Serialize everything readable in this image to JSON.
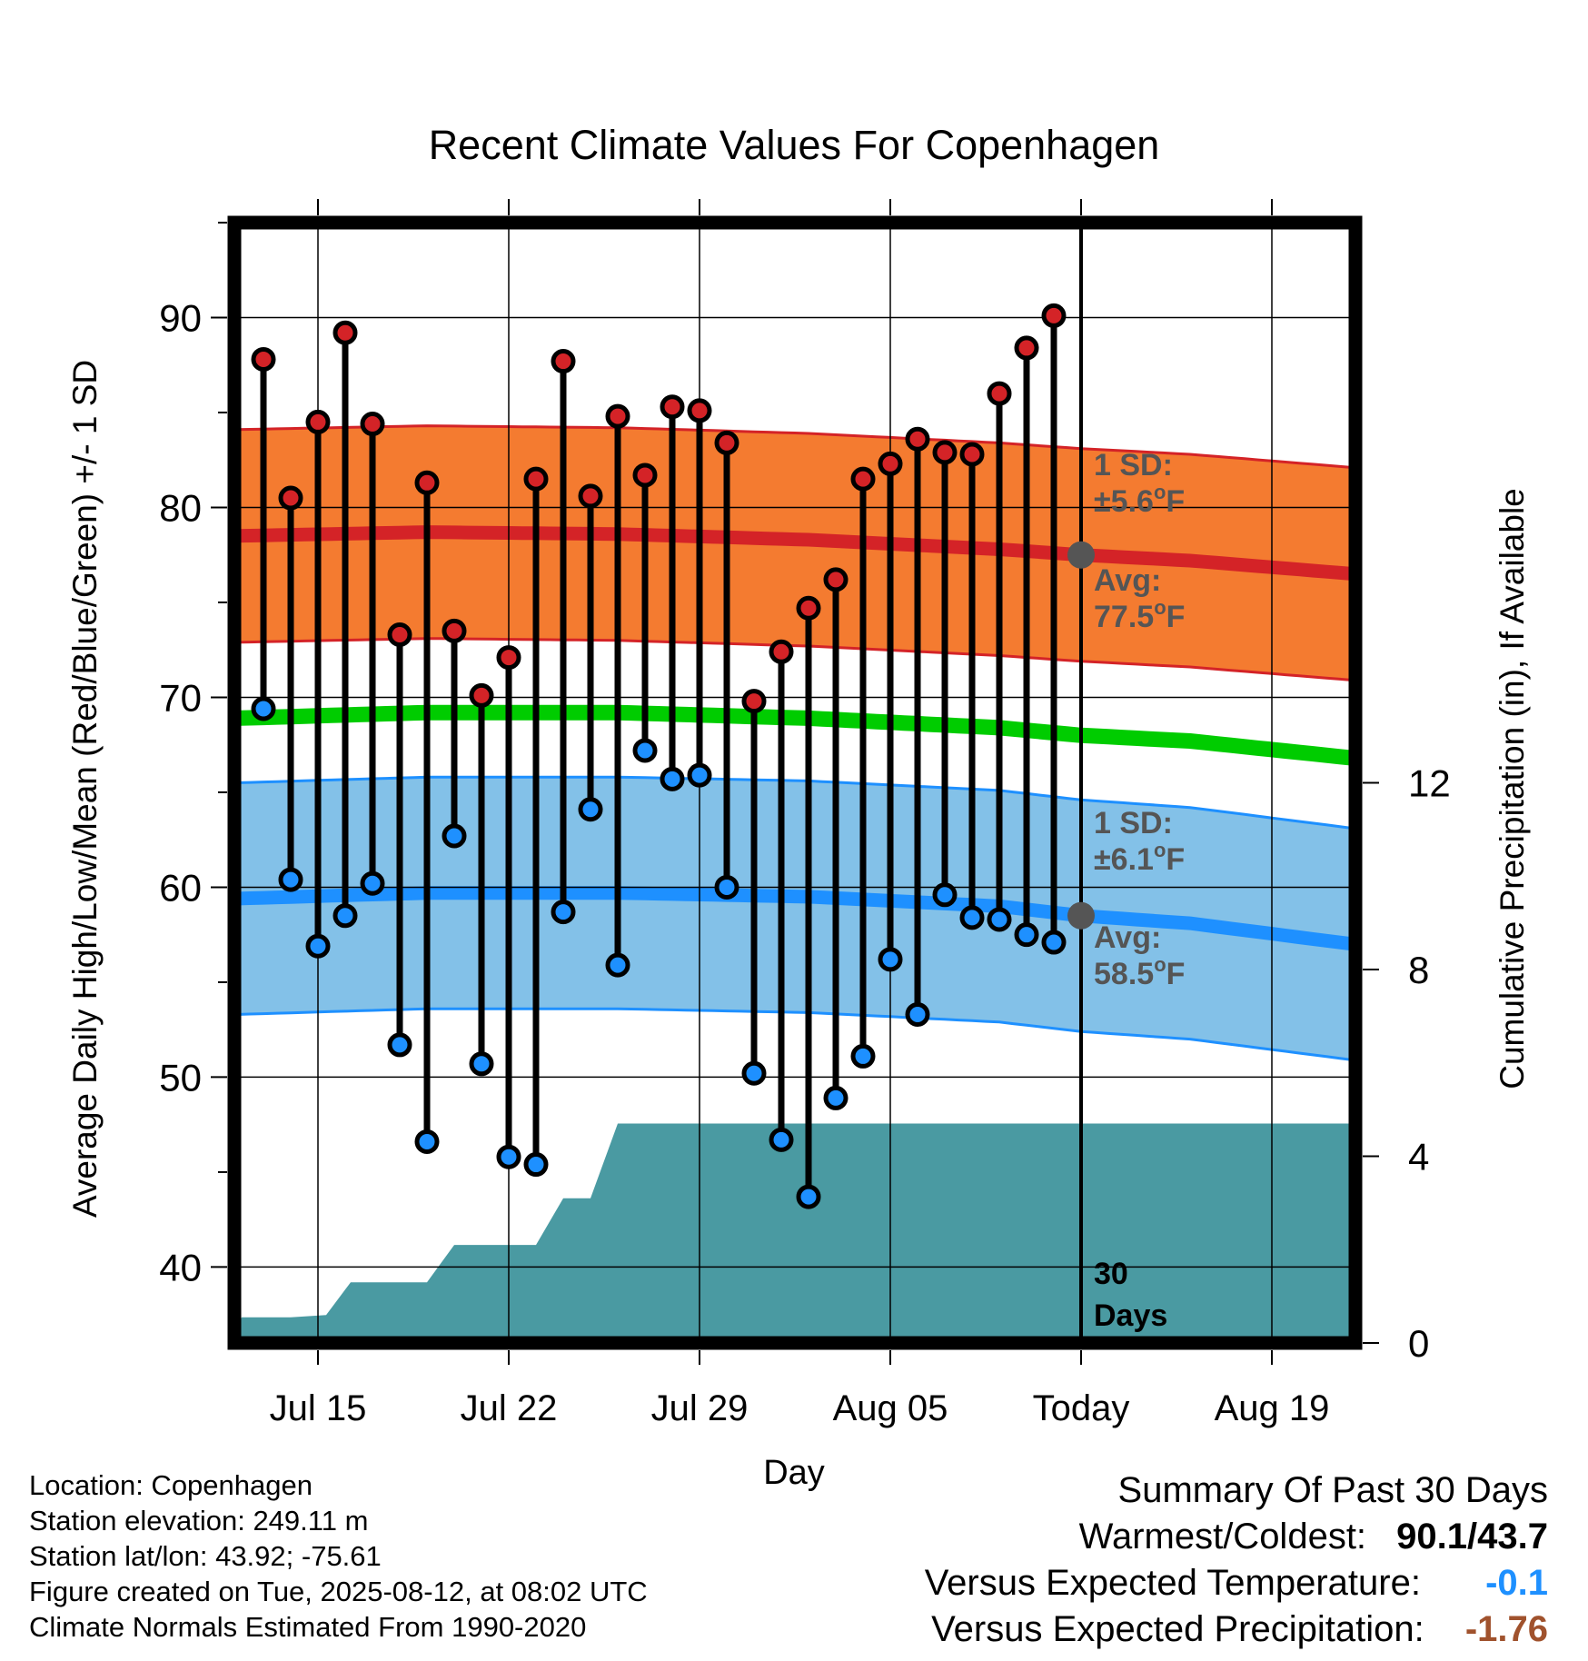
{
  "chart_data": {
    "type": "line",
    "title": "Recent Climate Values For Copenhagen",
    "xlabel": "Day",
    "ylabel_left": "Average Daily High/Low/Mean (Red/Blue/Green) +/- 1 SD",
    "ylabel_right": "Cumulative Precipitation (in), If Available",
    "ylim_left": [
      36,
      95
    ],
    "ylim_right": [
      0,
      24
    ],
    "xlim": [
      -3.5,
      38.2
    ],
    "x_ticks": [
      {
        "x": 0,
        "label": "Jul 15"
      },
      {
        "x": 7,
        "label": "Jul 22"
      },
      {
        "x": 14,
        "label": "Jul 29"
      },
      {
        "x": 21,
        "label": "Aug 05"
      },
      {
        "x": 28,
        "label": "Today"
      },
      {
        "x": 35,
        "label": "Aug 19"
      }
    ],
    "y_ticks_left": [
      40,
      50,
      60,
      70,
      80,
      90
    ],
    "y_ticks_right": [
      0,
      4,
      8,
      12
    ],
    "grid": true,
    "today_x": 28,
    "days": [
      "Jul 13",
      "Jul 14",
      "Jul 15",
      "Jul 16",
      "Jul 17",
      "Jul 18",
      "Jul 19",
      "Jul 20",
      "Jul 21",
      "Jul 22",
      "Jul 23",
      "Jul 24",
      "Jul 25",
      "Jul 26",
      "Jul 27",
      "Jul 28",
      "Jul 29",
      "Jul 30",
      "Jul 31",
      "Aug 01",
      "Aug 02",
      "Aug 03",
      "Aug 04",
      "Aug 05",
      "Aug 06",
      "Aug 07",
      "Aug 08",
      "Aug 09",
      "Aug 10",
      "Aug 11",
      "Aug 12"
    ],
    "x": [
      -2,
      -1,
      0,
      1,
      2,
      3,
      4,
      5,
      6,
      7,
      8,
      9,
      10,
      11,
      12,
      13,
      14,
      15,
      16,
      17,
      18,
      19,
      20,
      21,
      22,
      23,
      24,
      25,
      26,
      27,
      28
    ],
    "highs": [
      87.8,
      80.5,
      84.5,
      89.2,
      84.4,
      73.3,
      81.3,
      73.5,
      70.1,
      72.1,
      81.5,
      87.7,
      80.6,
      84.8,
      81.7,
      85.3,
      85.1,
      83.4,
      69.8,
      72.4,
      74.7,
      76.2,
      81.5,
      82.3,
      83.6,
      82.9,
      82.8,
      86.0,
      88.4,
      90.1,
      null
    ],
    "lows": [
      69.4,
      60.4,
      56.9,
      58.5,
      60.2,
      51.7,
      46.6,
      62.7,
      50.7,
      45.8,
      45.4,
      58.7,
      64.1,
      55.9,
      67.2,
      65.7,
      65.9,
      60.0,
      50.2,
      46.7,
      43.7,
      48.9,
      51.1,
      56.2,
      53.3,
      59.6,
      58.4,
      58.3,
      57.5,
      57.1,
      null
    ],
    "normal_high": {
      "name": "Avg:",
      "value_label": "77.5°F",
      "x": [
        -3,
        4,
        11,
        18,
        25,
        28,
        32,
        38
      ],
      "values": [
        78.5,
        78.7,
        78.6,
        78.3,
        77.8,
        77.5,
        77.2,
        76.5
      ]
    },
    "normal_high_sd": {
      "name": "1 SD:",
      "value_label": "±5.6°F",
      "sd": 5.6
    },
    "normal_low": {
      "name": "Avg:",
      "value_label": "58.5°F",
      "x": [
        -3,
        4,
        11,
        18,
        25,
        28,
        32,
        38
      ],
      "values": [
        59.4,
        59.7,
        59.7,
        59.5,
        59.0,
        58.5,
        58.1,
        57.0
      ]
    },
    "normal_low_sd": {
      "name": "1 SD:",
      "value_label": "±6.1°F",
      "sd": 6.1
    },
    "normal_mean": {
      "x": [
        -3,
        4,
        11,
        18,
        25,
        28,
        32,
        38
      ],
      "values": [
        68.9,
        69.2,
        69.2,
        68.9,
        68.4,
        68.0,
        67.7,
        66.8
      ]
    },
    "precip_cumulative": {
      "x": [
        -3.2,
        -2.8,
        -1,
        0.3,
        1.2,
        4,
        5,
        8,
        9,
        10,
        11,
        12,
        14,
        16,
        28,
        38
      ],
      "values": [
        0,
        0.55,
        0.55,
        0.6,
        1.3,
        1.3,
        2.1,
        2.1,
        3.1,
        3.1,
        4.7,
        4.7,
        4.7,
        4.7,
        4.7,
        4.7
      ]
    },
    "precip_label": {
      "line1": "30",
      "line2": "Days"
    },
    "colors": {
      "high_band": "#f47b30",
      "high_line": "#d42327",
      "low_band": "#83c1e8",
      "low_line": "#1e90ff",
      "mean_line": "#00cc00",
      "precip": "#4a9aa2",
      "high_marker": "#d42327",
      "low_marker": "#1e90ff",
      "today_marker": "#555555",
      "label_gray": "#555555"
    }
  },
  "footer": {
    "location": "Location: Copenhagen",
    "elevation": "Station elevation: 249.11 m",
    "latlon": "Station lat/lon: 43.92; -75.61",
    "created": "Figure created on Tue, 2025-08-12, at 08:02 UTC",
    "normals": "Climate Normals Estimated From 1990-2020"
  },
  "summary": {
    "title": "Summary Of Past 30 Days",
    "warmest_label": "Warmest/Coldest:",
    "warmest_value": "90.1/43.7",
    "temp_label": "Versus Expected Temperature:",
    "temp_value": "-0.1",
    "temp_color": "#1e90ff",
    "precip_label": "Versus Expected Precipitation:",
    "precip_value": "-1.76",
    "precip_color": "#a0522d"
  }
}
